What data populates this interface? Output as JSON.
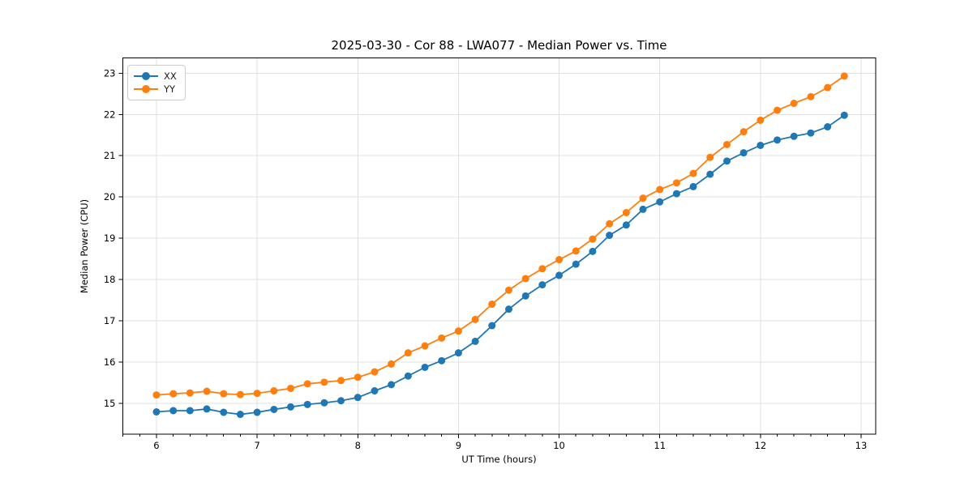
{
  "figure": {
    "title": "2025-03-30 - Cor 88 - LWA077 - Median Power vs. Time",
    "xlabel": "UT Time (hours)",
    "ylabel": "Median Power (CPU)"
  },
  "legend": {
    "position": "upper-left",
    "items": [
      {
        "label": "XX",
        "color": "#1f77b4"
      },
      {
        "label": "YY",
        "color": "#ff7f0e"
      }
    ]
  },
  "chart_data": {
    "type": "line",
    "title": "2025-03-30 - Cor 88 - LWA077 - Median Power vs. Time",
    "xlabel": "UT Time (hours)",
    "ylabel": "Median Power (CPU)",
    "xlim": [
      5.666,
      13.145
    ],
    "ylim": [
      14.25,
      23.37
    ],
    "x_ticks": [
      6,
      7,
      8,
      9,
      10,
      11,
      12,
      13
    ],
    "y_ticks": [
      15,
      16,
      17,
      18,
      19,
      20,
      21,
      22,
      23
    ],
    "x_minor_step_hours": 0.16667,
    "grid": "major",
    "grid_color": "#e0e0e0",
    "marker": "circle",
    "x": [
      6.0,
      6.167,
      6.333,
      6.5,
      6.667,
      6.833,
      7.0,
      7.167,
      7.333,
      7.5,
      7.667,
      7.833,
      8.0,
      8.167,
      8.333,
      8.5,
      8.667,
      8.833,
      9.0,
      9.167,
      9.333,
      9.5,
      9.667,
      9.833,
      10.0,
      10.167,
      10.333,
      10.5,
      10.667,
      10.833,
      11.0,
      11.167,
      11.333,
      11.5,
      11.667,
      11.833,
      12.0,
      12.167,
      12.333,
      12.5,
      12.667,
      12.833
    ],
    "series": [
      {
        "name": "XX",
        "color": "#1f77b4",
        "values": [
          14.79,
          14.82,
          14.82,
          14.86,
          14.78,
          14.73,
          14.78,
          14.85,
          14.91,
          14.97,
          15.01,
          15.06,
          15.14,
          15.3,
          15.45,
          15.66,
          15.87,
          16.03,
          16.22,
          16.5,
          16.88,
          17.28,
          17.6,
          17.87,
          18.1,
          18.37,
          18.68,
          19.07,
          19.32,
          19.7,
          19.88,
          20.08,
          20.25,
          20.55,
          20.87,
          21.07,
          21.25,
          21.38,
          21.47,
          21.55,
          21.7,
          21.98
        ]
      },
      {
        "name": "YY",
        "color": "#ff7f0e",
        "values": [
          15.2,
          15.23,
          15.25,
          15.29,
          15.23,
          15.21,
          15.24,
          15.3,
          15.36,
          15.47,
          15.51,
          15.55,
          15.63,
          15.76,
          15.95,
          16.22,
          16.39,
          16.58,
          16.75,
          17.03,
          17.4,
          17.74,
          18.02,
          18.26,
          18.48,
          18.69,
          18.98,
          19.35,
          19.62,
          19.97,
          20.18,
          20.34,
          20.57,
          20.96,
          21.27,
          21.58,
          21.86,
          22.1,
          22.27,
          22.43,
          22.65,
          22.93
        ]
      }
    ]
  }
}
